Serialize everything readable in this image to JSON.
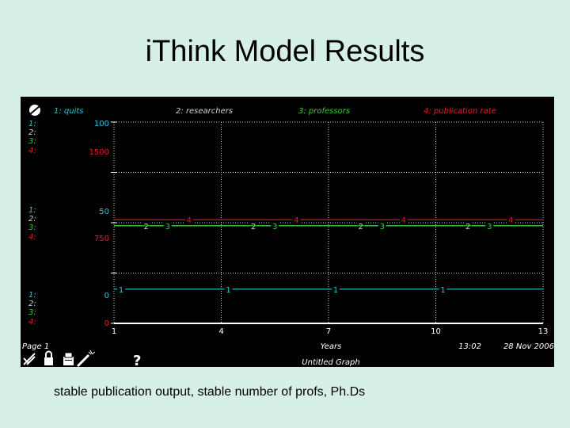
{
  "slide": {
    "title": "iThink Model Results",
    "caption": "stable publication output, stable number of profs, Ph.Ds"
  },
  "colors": {
    "background": "#000000",
    "quits": "#2ec4dc",
    "researchers": "#d0d0d0",
    "professors": "#32cd32",
    "publication_rate": "#e02020",
    "grid": "#cfcfcf",
    "axis_text": "#ffffff",
    "slide_bg": "#d6efe9"
  },
  "graph": {
    "page_label": "Page 1",
    "time": "13:02",
    "date": "28 Nov 2006",
    "graph_name": "Untitled Graph",
    "help_glyph": "?",
    "icons": [
      "scale-icon",
      "lock-icon",
      "printer-icon",
      "magic-wand-icon",
      "help-icon"
    ]
  },
  "chart_data": {
    "type": "line",
    "xlabel": "Years",
    "xlim": [
      1,
      13
    ],
    "x_ticks": [
      "1",
      "4",
      "7",
      "10",
      "13"
    ],
    "legend": [
      {
        "key": "1:",
        "name": "quits",
        "color": "#2ec4dc"
      },
      {
        "key": "2:",
        "name": "researchers",
        "color": "#d0d0d0"
      },
      {
        "key": "3:",
        "name": "professors",
        "color": "#32cd32"
      },
      {
        "key": "4:",
        "name": "publication rate",
        "color": "#e02020"
      }
    ],
    "y_scale_blocks": [
      {
        "level": "top",
        "keys": [
          "1:",
          "2:",
          "3:",
          "4:"
        ],
        "values": [
          {
            "series": 1,
            "text": "100"
          },
          {
            "series": 4,
            "text": "1500"
          }
        ]
      },
      {
        "level": "mid",
        "keys": [
          "1:",
          "2:",
          "3:",
          "4:"
        ],
        "values": [
          {
            "series": 1,
            "text": "50"
          },
          {
            "series": 4,
            "text": "750"
          }
        ]
      },
      {
        "level": "bottom",
        "keys": [
          "1:",
          "2:",
          "3:",
          "4:"
        ],
        "values": [
          {
            "series": 1,
            "text": "0"
          },
          {
            "series": 4,
            "text": "0"
          }
        ]
      }
    ],
    "ylim_series1": [
      0,
      100
    ],
    "ylim_series4": [
      0,
      1500
    ],
    "series": [
      {
        "id": "1",
        "name": "quits",
        "color": "#2ec4dc",
        "x": [
          1,
          13
        ],
        "y": [
          17,
          17
        ],
        "marker_x": [
          1.2,
          4.2,
          7.2,
          10.2
        ]
      },
      {
        "id": "2",
        "name": "researchers",
        "color": "#d0d0d0",
        "x": [
          1,
          13
        ],
        "y": [
          48.5,
          48.5
        ],
        "marker_x": [
          1.9,
          4.9,
          7.9,
          10.9
        ]
      },
      {
        "id": "3",
        "name": "professors",
        "color": "#32cd32",
        "x": [
          1,
          13
        ],
        "y": [
          48.5,
          48.5
        ],
        "marker_x": [
          2.5,
          5.5,
          8.5,
          11.5
        ]
      },
      {
        "id": "4",
        "name": "publication rate",
        "color": "#e02020",
        "x": [
          1,
          13
        ],
        "y": [
          51.5,
          51.5
        ],
        "marker_x": [
          3.1,
          6.1,
          9.1,
          12.1
        ]
      }
    ]
  }
}
